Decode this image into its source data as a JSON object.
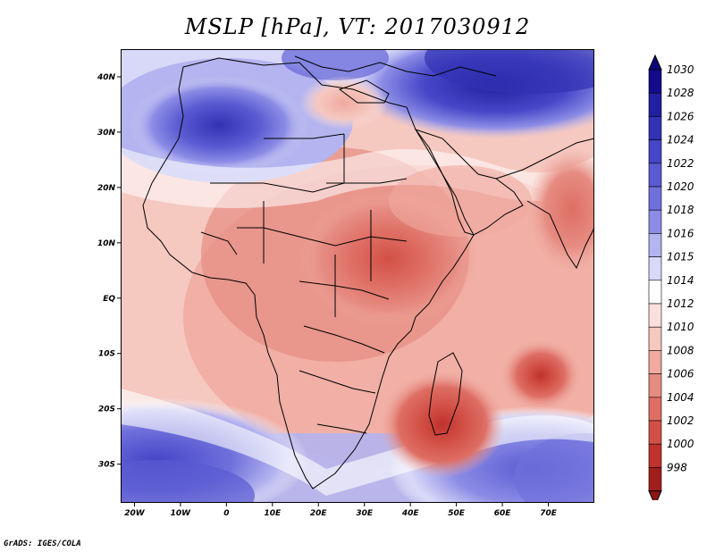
{
  "title": "MSLP [hPa], VT: 2017030912",
  "credit": "GrADS: IGES/COLA",
  "map": {
    "lon_range": [
      -23,
      80
    ],
    "lat_range": [
      -37,
      45
    ],
    "x_ticks": [
      {
        "lon": -20,
        "label": "20W"
      },
      {
        "lon": -10,
        "label": "10W"
      },
      {
        "lon": 0,
        "label": "0"
      },
      {
        "lon": 10,
        "label": "10E"
      },
      {
        "lon": 20,
        "label": "20E"
      },
      {
        "lon": 30,
        "label": "30E"
      },
      {
        "lon": 40,
        "label": "40E"
      },
      {
        "lon": 50,
        "label": "50E"
      },
      {
        "lon": 60,
        "label": "60E"
      },
      {
        "lon": 70,
        "label": "70E"
      }
    ],
    "y_ticks": [
      {
        "lat": 40,
        "label": "40N"
      },
      {
        "lat": 30,
        "label": "30N"
      },
      {
        "lat": 20,
        "label": "20N"
      },
      {
        "lat": 10,
        "label": "10N"
      },
      {
        "lat": 0,
        "label": "EQ"
      },
      {
        "lat": -10,
        "label": "10S"
      },
      {
        "lat": -20,
        "label": "20S"
      },
      {
        "lat": -30,
        "label": "30S"
      }
    ]
  },
  "colorbar": {
    "levels": [
      {
        "label": "1030",
        "color": "#140a8c"
      },
      {
        "label": "1028",
        "color": "#2020a0"
      },
      {
        "label": "1026",
        "color": "#3232b4"
      },
      {
        "label": "1024",
        "color": "#4646c8"
      },
      {
        "label": "1022",
        "color": "#5a5ad2"
      },
      {
        "label": "1020",
        "color": "#7070dc"
      },
      {
        "label": "1018",
        "color": "#8c8ce6"
      },
      {
        "label": "1016",
        "color": "#b4b4f0"
      },
      {
        "label": "1015",
        "color": "#d8d8f8"
      },
      {
        "label": "1014",
        "color": "#ffffff"
      },
      {
        "label": "1012",
        "color": "#fae0dc"
      },
      {
        "label": "1010",
        "color": "#f5c8c0"
      },
      {
        "label": "1008",
        "color": "#f0aaa0"
      },
      {
        "label": "1006",
        "color": "#e68c82"
      },
      {
        "label": "1004",
        "color": "#de6e64"
      },
      {
        "label": "1002",
        "color": "#d25046"
      },
      {
        "label": "1000",
        "color": "#c0322d"
      },
      {
        "label": "998",
        "color": "#a01e1e"
      }
    ],
    "top_color": "#0c0878",
    "bottom_color": "#8c1414"
  }
}
